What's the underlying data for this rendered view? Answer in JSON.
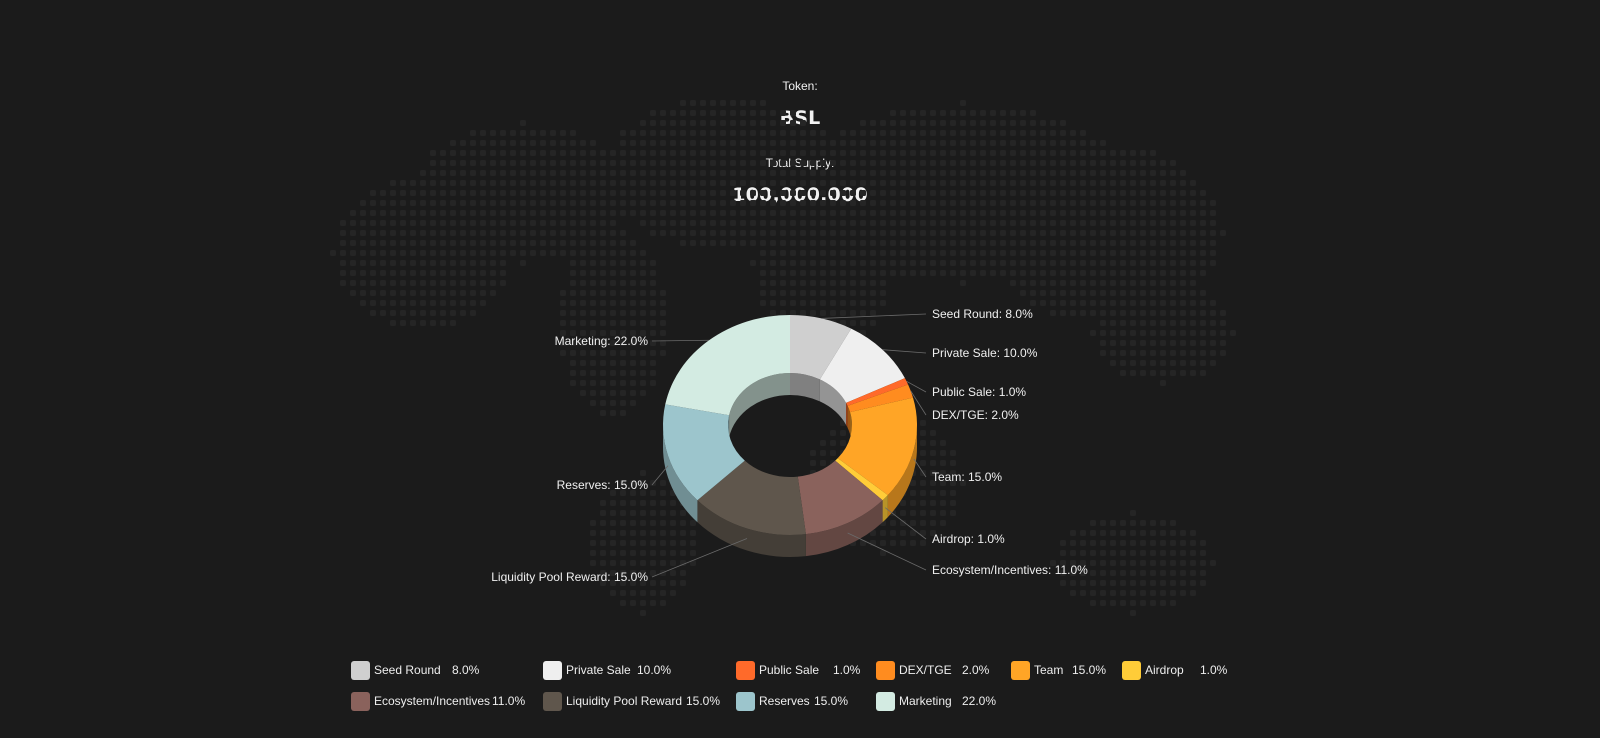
{
  "header": {
    "token_label": "Token:",
    "token_value": "BSL",
    "supply_label": "Total Supply:",
    "supply_value": "100,000,000"
  },
  "chart_data": {
    "type": "pie",
    "style": "3d-donut",
    "categories": [
      "Seed Round",
      "Private Sale",
      "Public Sale",
      "DEX/TGE",
      "Team",
      "Airdrop",
      "Ecosystem/Incentives",
      "Liquidity Pool Reward",
      "Reserves",
      "Marketing"
    ],
    "values": [
      8.0,
      10.0,
      1.0,
      2.0,
      15.0,
      1.0,
      11.0,
      15.0,
      15.0,
      22.0
    ],
    "slice_labels": [
      "Seed Round: 8.0%",
      "Private Sale: 10.0%",
      "Public Sale: 1.0%",
      "DEX/TGE: 2.0%",
      "Team: 15.0%",
      "Airdrop: 1.0%",
      "Ecosystem/Incentives: 11.0%",
      "Liquidity Pool Reward: 15.0%",
      "Reserves: 15.0%",
      "Marketing: 22.0%"
    ],
    "legend_values": [
      "8.0%",
      "10.0%",
      "1.0%",
      "2.0%",
      "15.0%",
      "1.0%",
      "11.0%",
      "15.0%",
      "15.0%",
      "22.0%"
    ],
    "colors": [
      "#cfcfcf",
      "#efefef",
      "#ff6a2a",
      "#ff8c1f",
      "#ffa526",
      "#ffcc38",
      "#8a625c",
      "#5f564c",
      "#9cc5cc",
      "#d3ebe2"
    ],
    "legend_placement": "bottom"
  }
}
